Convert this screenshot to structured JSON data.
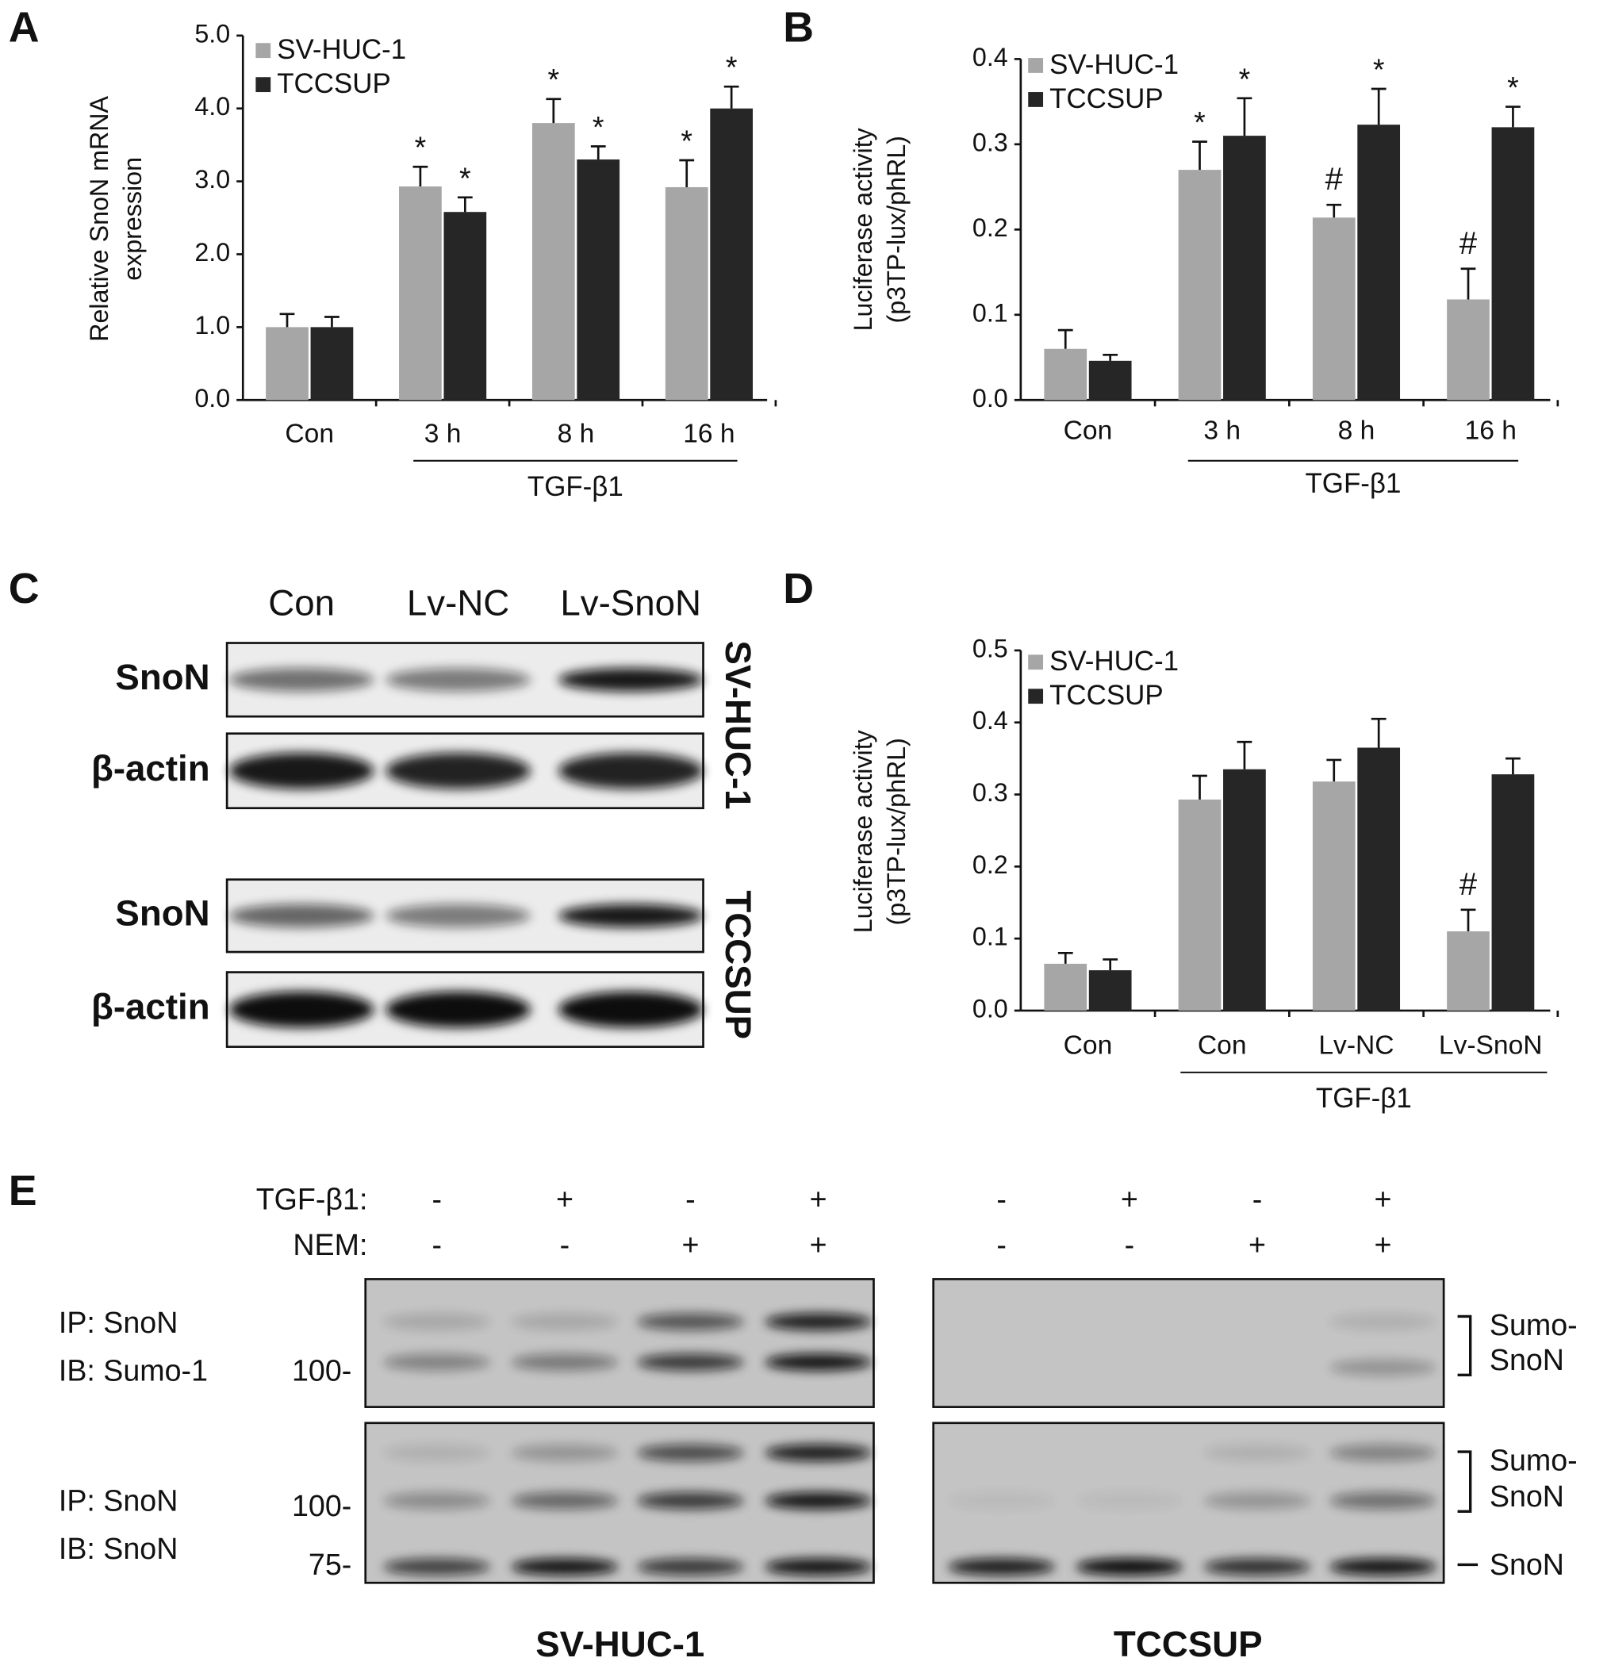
{
  "chart_data": [
    {
      "type": "bar",
      "panel_label": "A",
      "ylabel": [
        "Relative SnoN mRNA",
        "expression"
      ],
      "categories": [
        "Con",
        "3 h",
        "8 h",
        "16 h"
      ],
      "group_label": "TGF-β1",
      "series": [
        {
          "name": "SV-HUC-1",
          "color": "#a6a6a6",
          "values": [
            1.0,
            2.93,
            3.8,
            2.92
          ],
          "errors": [
            0.18,
            0.27,
            0.33,
            0.37
          ],
          "annotations": [
            null,
            "*",
            "*",
            "*"
          ]
        },
        {
          "name": "TCCSUP",
          "color": "#262626",
          "values": [
            1.0,
            2.58,
            3.3,
            4.0
          ],
          "errors": [
            0.14,
            0.2,
            0.18,
            0.3
          ],
          "annotations": [
            null,
            "*",
            "*",
            "*"
          ]
        }
      ],
      "ylim": [
        0,
        5
      ],
      "yticks": [
        {
          "value": 0,
          "label": "0.0"
        },
        {
          "value": 1,
          "label": "1.0"
        },
        {
          "value": 2,
          "label": "2.0"
        },
        {
          "value": 3,
          "label": "3.0"
        },
        {
          "value": 4,
          "label": "4.0"
        },
        {
          "value": 5,
          "label": "5.0"
        }
      ],
      "legend": "upper left"
    },
    {
      "type": "bar",
      "panel_label": "B",
      "ylabel": [
        "Luciferase activity",
        "(p3TP-lux/phRL)"
      ],
      "categories": [
        "Con",
        "3 h",
        "8 h",
        "16 h"
      ],
      "group_label": "TGF-β1",
      "series": [
        {
          "name": "SV-HUC-1",
          "color": "#a6a6a6",
          "values": [
            0.06,
            0.27,
            0.214,
            0.118
          ],
          "errors": [
            0.022,
            0.033,
            0.015,
            0.036
          ],
          "annotations": [
            null,
            "*",
            "#",
            "#"
          ]
        },
        {
          "name": "TCCSUP",
          "color": "#262626",
          "values": [
            0.046,
            0.31,
            0.323,
            0.32
          ],
          "errors": [
            0.007,
            0.044,
            0.042,
            0.024
          ],
          "annotations": [
            null,
            "*",
            "*",
            "*"
          ]
        }
      ],
      "ylim": [
        0,
        0.4
      ],
      "yticks": [
        {
          "value": 0,
          "label": "0.0"
        },
        0.1,
        0.2,
        0.3,
        0.4
      ],
      "legend": "upper left"
    },
    {
      "type": "bar",
      "panel_label": "D",
      "ylabel": [
        "Luciferase activity",
        "(p3TP-lux/phRL)"
      ],
      "categories": [
        "Con",
        "Con",
        "Lv-NC",
        "Lv-SnoN"
      ],
      "group_label": "TGF-β1",
      "series": [
        {
          "name": "SV-HUC-1",
          "color": "#a6a6a6",
          "values": [
            0.065,
            0.293,
            0.318,
            0.11
          ],
          "errors": [
            0.015,
            0.033,
            0.03,
            0.03
          ],
          "annotations": [
            null,
            null,
            null,
            "#"
          ]
        },
        {
          "name": "TCCSUP",
          "color": "#262626",
          "values": [
            0.056,
            0.335,
            0.365,
            0.328
          ],
          "errors": [
            0.015,
            0.038,
            0.04,
            0.022
          ],
          "annotations": [
            null,
            null,
            null,
            null
          ]
        }
      ],
      "ylim": [
        0,
        0.5
      ],
      "yticks": [
        {
          "value": 0,
          "label": "0.0"
        },
        0.1,
        0.2,
        0.3,
        0.4,
        0.5
      ],
      "legend": "upper left"
    }
  ],
  "panel_c": {
    "label": "C",
    "columns": [
      "Con",
      "Lv-NC",
      "Lv-SnoN"
    ],
    "blots": [
      {
        "cell_line": "SV-HUC-1",
        "rows": [
          "SnoN",
          "β-actin"
        ]
      },
      {
        "cell_line": "TCCSUP",
        "rows": [
          "SnoN",
          "β-actin"
        ]
      }
    ]
  },
  "panel_e": {
    "label": "E",
    "conditions": [
      {
        "name": "TGF-β1:",
        "signs": [
          "-",
          "+",
          "-",
          "+",
          "-",
          "+",
          "-",
          "+"
        ]
      },
      {
        "name": "NEM:",
        "signs": [
          "-",
          "-",
          "+",
          "+",
          "-",
          "-",
          "+",
          "+"
        ]
      }
    ],
    "blots": [
      {
        "ip": "IP: SnoN",
        "ib": "IB: Sumo-1",
        "markers": [
          "100-"
        ]
      },
      {
        "ip": "IP: SnoN",
        "ib": "IB: SnoN",
        "markers": [
          "100-",
          "75-"
        ]
      }
    ],
    "band_labels": [
      [
        "Sumo-",
        "SnoN"
      ],
      [
        "Sumo-",
        "SnoN"
      ],
      [
        "SnoN"
      ]
    ],
    "cell_lines": [
      "SV-HUC-1",
      "TCCSUP"
    ]
  }
}
